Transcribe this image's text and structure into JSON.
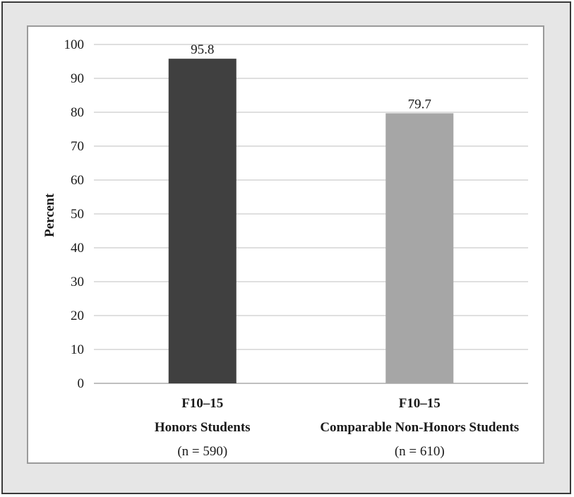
{
  "chart_data": {
    "type": "bar",
    "title": "",
    "xlabel": "",
    "ylabel": "Percent",
    "ylim": [
      0,
      100
    ],
    "yticks": [
      0,
      10,
      20,
      30,
      40,
      50,
      60,
      70,
      80,
      90,
      100
    ],
    "grid": true,
    "categories": [
      {
        "line1": "F10–15",
        "line2": "Honors Students",
        "line3": "(n = 590)"
      },
      {
        "line1": "F10–15",
        "line2": "Comparable Non-Honors Students",
        "line3": "(n = 610)"
      }
    ],
    "values": [
      95.8,
      79.7
    ],
    "value_labels": [
      "95.8",
      "79.7"
    ],
    "bar_colors": [
      "#404040",
      "#a6a6a6"
    ]
  },
  "colors": {
    "frame_background": "#e6e6e6",
    "frame_border": "#3a3a3a",
    "panel_border": "#9a9a9a",
    "gridline": "#bfbfbf"
  }
}
